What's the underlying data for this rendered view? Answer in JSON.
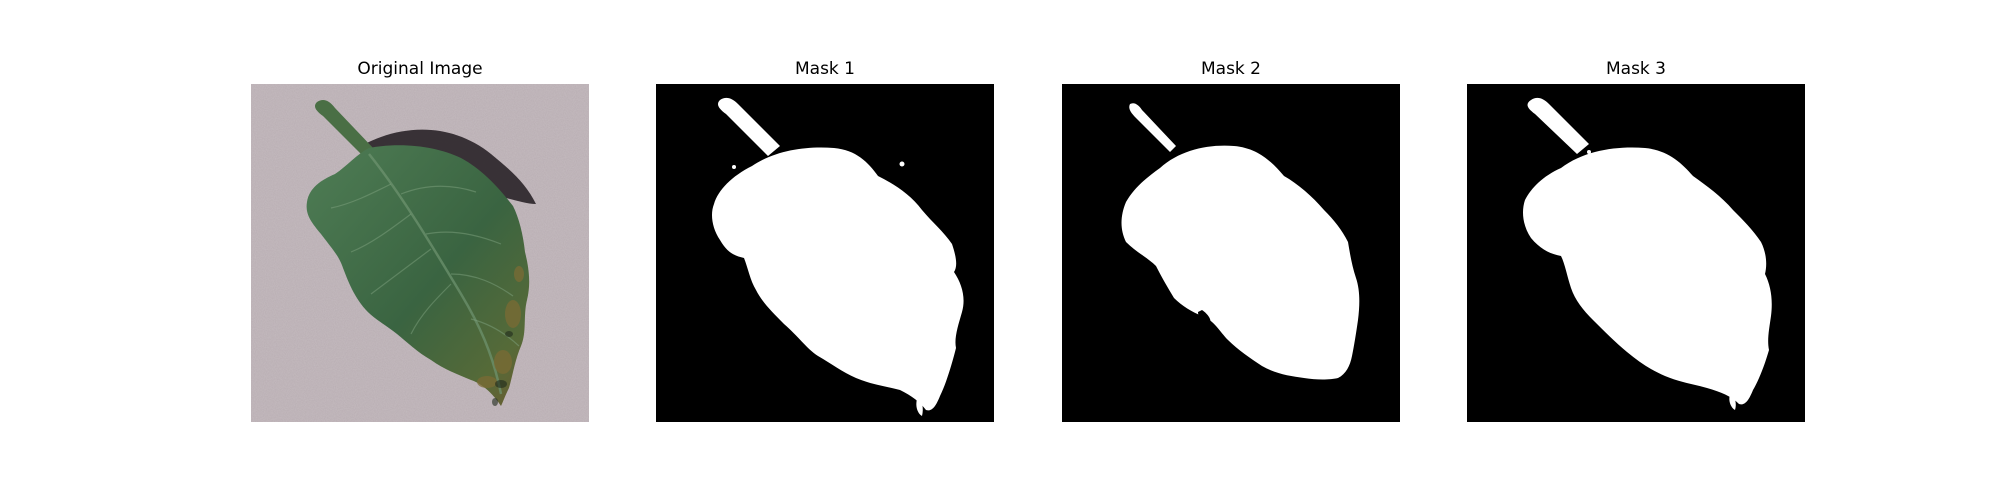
{
  "panels": [
    {
      "title": "Original Image",
      "kind": "photo"
    },
    {
      "title": "Mask 1",
      "kind": "mask"
    },
    {
      "title": "Mask 2",
      "kind": "mask"
    },
    {
      "title": "Mask 3",
      "kind": "mask"
    }
  ],
  "colors": {
    "background_photo": "#b9adb2",
    "leaf": "#3f6b45",
    "leaf_dark": "#2a4a30",
    "leaf_lesion": "#7a6a36",
    "shadow": "#2b2529",
    "mask_bg": "#000000",
    "mask_fg": "#ffffff"
  }
}
